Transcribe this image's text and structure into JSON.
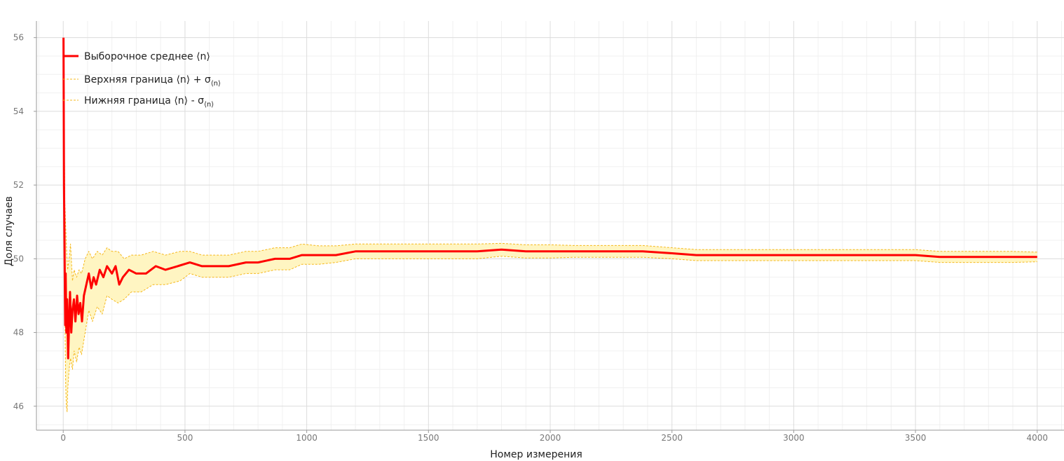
{
  "chart_data": {
    "type": "line",
    "xlabel": "Номер измерения",
    "ylabel": "Доля случаев",
    "xlim": [
      -110,
      4110
    ],
    "ylim": [
      45.35,
      56.45
    ],
    "x_ticks": [
      0,
      500,
      1000,
      1500,
      2000,
      2500,
      3000,
      3500,
      4000
    ],
    "x_tick_labels": [
      "0",
      "500",
      "1000",
      "1500",
      "2000",
      "2500",
      "3000",
      "3500",
      "4000"
    ],
    "y_ticks": [
      46,
      48,
      50,
      52,
      54,
      56
    ],
    "y_tick_labels": [
      "46",
      "48",
      "50",
      "52",
      "54",
      "56"
    ],
    "grid": true,
    "legend_position": "top-left",
    "legend": [
      {
        "key": "mean",
        "text": "Выборочное среднее ⟨n⟩",
        "sub": ""
      },
      {
        "key": "upper",
        "text": "Верхняя граница ⟨n⟩ + σ",
        "sub": "⟨n⟩"
      },
      {
        "key": "lower",
        "text": "Нижняя граница ⟨n⟩ - σ",
        "sub": "⟨n⟩"
      }
    ],
    "series": [
      {
        "key": "mean",
        "color": "#ff0000",
        "style": "solid",
        "points": [
          [
            1,
            56.0
          ],
          [
            3,
            52.0
          ],
          [
            5,
            50.5
          ],
          [
            8,
            48.2
          ],
          [
            10,
            49.6
          ],
          [
            13,
            48.0
          ],
          [
            16,
            48.9
          ],
          [
            20,
            47.3
          ],
          [
            24,
            48.3
          ],
          [
            28,
            49.1
          ],
          [
            33,
            48.0
          ],
          [
            38,
            48.6
          ],
          [
            44,
            48.9
          ],
          [
            50,
            48.3
          ],
          [
            57,
            49.0
          ],
          [
            63,
            48.5
          ],
          [
            70,
            48.8
          ],
          [
            77,
            48.3
          ],
          [
            85,
            49.0
          ],
          [
            95,
            49.3
          ],
          [
            105,
            49.6
          ],
          [
            115,
            49.2
          ],
          [
            125,
            49.5
          ],
          [
            135,
            49.3
          ],
          [
            150,
            49.7
          ],
          [
            165,
            49.5
          ],
          [
            180,
            49.8
          ],
          [
            200,
            49.6
          ],
          [
            215,
            49.8
          ],
          [
            230,
            49.3
          ],
          [
            245,
            49.5
          ],
          [
            270,
            49.7
          ],
          [
            300,
            49.6
          ],
          [
            340,
            49.6
          ],
          [
            380,
            49.8
          ],
          [
            420,
            49.7
          ],
          [
            470,
            49.8
          ],
          [
            520,
            49.9
          ],
          [
            570,
            49.8
          ],
          [
            620,
            49.8
          ],
          [
            680,
            49.8
          ],
          [
            750,
            49.9
          ],
          [
            800,
            49.9
          ],
          [
            870,
            50.0
          ],
          [
            930,
            50.0
          ],
          [
            980,
            50.1
          ],
          [
            1050,
            50.1
          ],
          [
            1120,
            50.1
          ],
          [
            1200,
            50.2
          ],
          [
            1300,
            50.2
          ],
          [
            1400,
            50.2
          ],
          [
            1500,
            50.2
          ],
          [
            1600,
            50.2
          ],
          [
            1700,
            50.2
          ],
          [
            1800,
            50.25
          ],
          [
            1900,
            50.2
          ],
          [
            2000,
            50.2
          ],
          [
            2100,
            50.2
          ],
          [
            2200,
            50.2
          ],
          [
            2300,
            50.2
          ],
          [
            2380,
            50.2
          ],
          [
            2500,
            50.15
          ],
          [
            2600,
            50.1
          ],
          [
            2700,
            50.1
          ],
          [
            2800,
            50.1
          ],
          [
            2900,
            50.1
          ],
          [
            3000,
            50.1
          ],
          [
            3100,
            50.1
          ],
          [
            3200,
            50.1
          ],
          [
            3300,
            50.1
          ],
          [
            3400,
            50.1
          ],
          [
            3500,
            50.1
          ],
          [
            3600,
            50.05
          ],
          [
            3700,
            50.05
          ],
          [
            3800,
            50.05
          ],
          [
            3900,
            50.05
          ],
          [
            4000,
            50.05
          ]
        ]
      },
      {
        "key": "upper",
        "color": "#f5b81c",
        "style": "dashed",
        "points": [
          [
            1,
            55.0
          ],
          [
            4,
            53.5
          ],
          [
            7,
            51.5
          ],
          [
            10,
            50.9
          ],
          [
            14,
            50.2
          ],
          [
            18,
            49.7
          ],
          [
            24,
            50.0
          ],
          [
            30,
            50.4
          ],
          [
            38,
            49.4
          ],
          [
            45,
            49.7
          ],
          [
            55,
            49.5
          ],
          [
            65,
            49.7
          ],
          [
            75,
            49.6
          ],
          [
            90,
            50.0
          ],
          [
            105,
            50.2
          ],
          [
            120,
            50.0
          ],
          [
            140,
            50.2
          ],
          [
            160,
            50.1
          ],
          [
            180,
            50.3
          ],
          [
            200,
            50.2
          ],
          [
            225,
            50.2
          ],
          [
            250,
            50.0
          ],
          [
            280,
            50.1
          ],
          [
            320,
            50.1
          ],
          [
            370,
            50.2
          ],
          [
            420,
            50.1
          ],
          [
            480,
            50.2
          ],
          [
            520,
            50.2
          ],
          [
            570,
            50.1
          ],
          [
            620,
            50.1
          ],
          [
            680,
            50.1
          ],
          [
            750,
            50.2
          ],
          [
            800,
            50.2
          ],
          [
            870,
            50.3
          ],
          [
            930,
            50.3
          ],
          [
            980,
            50.4
          ],
          [
            1050,
            50.35
          ],
          [
            1120,
            50.35
          ],
          [
            1200,
            50.4
          ],
          [
            1300,
            50.4
          ],
          [
            1400,
            50.4
          ],
          [
            1500,
            50.4
          ],
          [
            1600,
            50.4
          ],
          [
            1700,
            50.4
          ],
          [
            1800,
            50.42
          ],
          [
            1900,
            50.38
          ],
          [
            2000,
            50.38
          ],
          [
            2100,
            50.36
          ],
          [
            2200,
            50.36
          ],
          [
            2300,
            50.36
          ],
          [
            2380,
            50.36
          ],
          [
            2500,
            50.3
          ],
          [
            2600,
            50.25
          ],
          [
            2700,
            50.25
          ],
          [
            2800,
            50.25
          ],
          [
            2900,
            50.25
          ],
          [
            3000,
            50.25
          ],
          [
            3100,
            50.25
          ],
          [
            3200,
            50.25
          ],
          [
            3300,
            50.25
          ],
          [
            3400,
            50.25
          ],
          [
            3500,
            50.25
          ],
          [
            3600,
            50.2
          ],
          [
            3700,
            50.2
          ],
          [
            3800,
            50.2
          ],
          [
            3900,
            50.2
          ],
          [
            4000,
            50.18
          ]
        ]
      },
      {
        "key": "lower",
        "color": "#f5b81c",
        "style": "dashed",
        "points": [
          [
            1,
            55.5
          ],
          [
            4,
            50.5
          ],
          [
            7,
            48.5
          ],
          [
            10,
            46.6
          ],
          [
            13,
            46.0
          ],
          [
            16,
            45.85
          ],
          [
            19,
            46.5
          ],
          [
            24,
            47.0
          ],
          [
            30,
            47.3
          ],
          [
            38,
            47.0
          ],
          [
            45,
            47.5
          ],
          [
            55,
            47.2
          ],
          [
            65,
            47.6
          ],
          [
            75,
            47.4
          ],
          [
            90,
            48.0
          ],
          [
            105,
            48.6
          ],
          [
            120,
            48.3
          ],
          [
            140,
            48.7
          ],
          [
            160,
            48.5
          ],
          [
            180,
            49.0
          ],
          [
            200,
            48.9
          ],
          [
            225,
            48.8
          ],
          [
            250,
            48.9
          ],
          [
            280,
            49.1
          ],
          [
            320,
            49.1
          ],
          [
            370,
            49.3
          ],
          [
            420,
            49.3
          ],
          [
            480,
            49.4
          ],
          [
            520,
            49.6
          ],
          [
            570,
            49.5
          ],
          [
            620,
            49.5
          ],
          [
            680,
            49.5
          ],
          [
            750,
            49.6
          ],
          [
            800,
            49.6
          ],
          [
            870,
            49.7
          ],
          [
            930,
            49.7
          ],
          [
            980,
            49.85
          ],
          [
            1050,
            49.85
          ],
          [
            1120,
            49.9
          ],
          [
            1200,
            50.0
          ],
          [
            1300,
            50.0
          ],
          [
            1400,
            50.0
          ],
          [
            1500,
            50.0
          ],
          [
            1600,
            50.0
          ],
          [
            1700,
            50.0
          ],
          [
            1800,
            50.07
          ],
          [
            1900,
            50.02
          ],
          [
            2000,
            50.02
          ],
          [
            2100,
            50.04
          ],
          [
            2200,
            50.04
          ],
          [
            2300,
            50.04
          ],
          [
            2380,
            50.04
          ],
          [
            2500,
            50.0
          ],
          [
            2600,
            49.95
          ],
          [
            2700,
            49.95
          ],
          [
            2800,
            49.95
          ],
          [
            2900,
            49.95
          ],
          [
            3000,
            49.95
          ],
          [
            3100,
            49.95
          ],
          [
            3200,
            49.95
          ],
          [
            3300,
            49.95
          ],
          [
            3400,
            49.95
          ],
          [
            3500,
            49.95
          ],
          [
            3600,
            49.9
          ],
          [
            3700,
            49.9
          ],
          [
            3800,
            49.9
          ],
          [
            3900,
            49.9
          ],
          [
            4000,
            49.92
          ]
        ]
      }
    ],
    "band_fill": "#fff5c2"
  }
}
